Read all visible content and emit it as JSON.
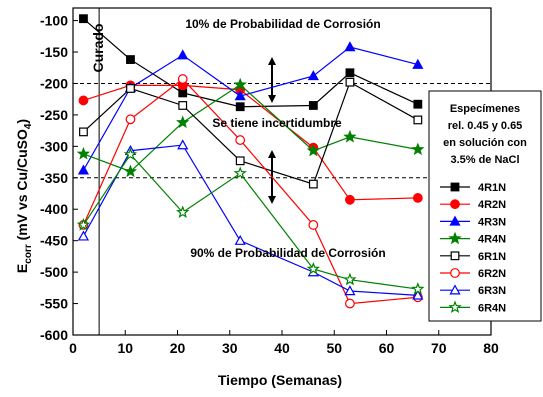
{
  "chart_data": {
    "type": "line",
    "xlabel": "Tiempo (Semanas)",
    "ylabel_main": "E",
    "ylabel_sub": "corr",
    "ylabel_rest": " (mV vs Cu/CuSO",
    "ylabel_sub2": "4",
    "ylabel_end": ")",
    "xlim": [
      0,
      80
    ],
    "ylim": [
      -600,
      -80
    ],
    "xticks": [
      0,
      10,
      20,
      30,
      40,
      50,
      60,
      70,
      80
    ],
    "yticks": [
      -100,
      -150,
      -200,
      -250,
      -300,
      -350,
      -400,
      -450,
      -500,
      -550,
      -600
    ],
    "threshold_lines": [
      -200,
      -350
    ],
    "curado_x": 5,
    "annotations": {
      "top": "10% de Probabilidad de Corrosión",
      "middle": "Se tiene incertidumbre",
      "bottom": "90% de Probabilidad de Corrosión",
      "curado": "Curado"
    },
    "legend_title": [
      "Especímenes",
      "rel. 0.45 y 0.65",
      "en solución con",
      "3.5% de NaCl"
    ],
    "x": [
      2,
      11,
      21,
      32,
      46,
      53,
      66
    ],
    "series": [
      {
        "name": "4R1N",
        "color": "#000000",
        "marker": "square",
        "filled": true,
        "values": [
          -97,
          -162,
          -215,
          -237,
          -235,
          -183,
          -233
        ]
      },
      {
        "name": "4R2N",
        "color": "#ff0000",
        "marker": "circle",
        "filled": true,
        "values": [
          -227,
          -203,
          -203,
          -210,
          -302,
          -385,
          -382
        ]
      },
      {
        "name": "4R3N",
        "color": "#0000ff",
        "marker": "triangle",
        "filled": true,
        "values": [
          -338,
          -207,
          -155,
          -220,
          -188,
          -142,
          -170
        ]
      },
      {
        "name": "4R4N",
        "color": "#008000",
        "marker": "star",
        "filled": true,
        "values": [
          -312,
          -340,
          -262,
          -202,
          -307,
          -285,
          -305
        ]
      },
      {
        "name": "6R1N",
        "color": "#000000",
        "marker": "square",
        "filled": false,
        "values": [
          -277,
          -208,
          -235,
          -323,
          -360,
          -198,
          -258
        ]
      },
      {
        "name": "6R2N",
        "color": "#ff0000",
        "marker": "circle",
        "filled": false,
        "values": [
          -425,
          -257,
          -193,
          -290,
          -425,
          -550,
          -540
        ]
      },
      {
        "name": "6R3N",
        "color": "#0000ff",
        "marker": "triangle",
        "filled": false,
        "values": [
          -443,
          -307,
          -298,
          -450,
          -500,
          -530,
          -537
        ]
      },
      {
        "name": "6R4N",
        "color": "#008000",
        "marker": "star",
        "filled": false,
        "values": [
          -425,
          -313,
          -405,
          -343,
          -495,
          -512,
          -527
        ]
      }
    ]
  }
}
